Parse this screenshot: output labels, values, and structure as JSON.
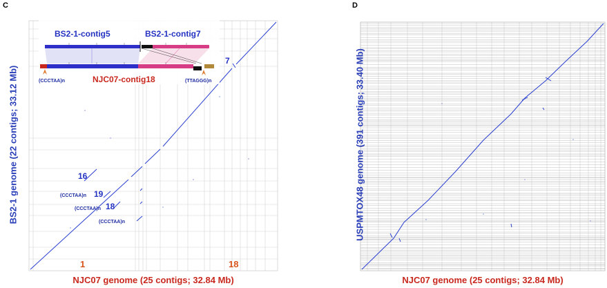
{
  "panel_c": {
    "letter": "C",
    "x_axis_label": "NJC07 genome (25 contigs; 32.84 Mb)",
    "y_axis_label": "BS2-1 genome (22 contigs; 33.12 Mb)",
    "inset": {
      "top_contig_left": "BS2-1-contig5",
      "top_contig_right": "BS2-1-contig7",
      "bottom_contig": "NJC07-contig18",
      "telomere_left": "(CCCTAA)n",
      "telomere_right": "(TTAGGG)n"
    },
    "region_labels": {
      "label_7": "7",
      "label_16": "16",
      "label_19": "19",
      "label_18_plot": "18",
      "telomere_19": "(CCCTAA)n",
      "telomere_16": "(CCCTAA)n",
      "telomere_18": "(CCCTAA)n",
      "x_label_1": "1",
      "x_label_18": "18"
    },
    "colors": {
      "dots": "#2a3fd0",
      "grid": "#cfcfcf",
      "inset_blue": "#2d2fc8",
      "inset_pink": "#d63d86",
      "inset_black": "#111111",
      "inset_red": "#c8281e",
      "inset_gold": "#b0893a",
      "telomere_orange": "#e07a2a"
    }
  },
  "panel_d": {
    "letter": "D",
    "x_axis_label": "NJC07 genome (25 contigs; 32.84 Mb)",
    "y_axis_label": "USPMTOX48 genome (391 contigs; 33.40 Mb)",
    "colors": {
      "dots": "#2a3fd0",
      "grid": "#b8b8b8"
    }
  }
}
